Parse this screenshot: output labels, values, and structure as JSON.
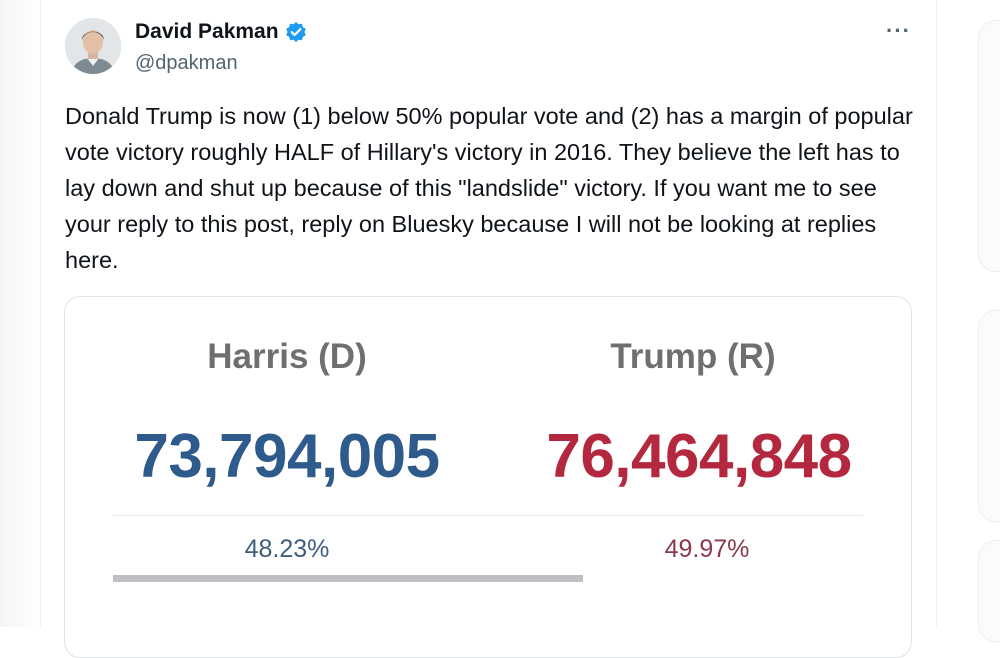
{
  "author": {
    "display_name": "David Pakman",
    "handle": "@dpakman",
    "verified": true,
    "avatar_icon": "profile-photo"
  },
  "menu": {
    "more_label": "···"
  },
  "post": {
    "text": "Donald Trump is now (1) below 50% popular vote and (2) has a margin of popular vote victory roughly HALF of Hillary's victory in 2016. They believe the left has to lay down and shut up because of this \"landslide\" victory. If you want me to see your reply to this post, reply on Bluesky because I will not be looking at replies here."
  },
  "results": {
    "harris": {
      "label": "Harris (D)",
      "votes": "73,794,005",
      "percent": "48.23%",
      "color": "#2e5a8c"
    },
    "trump": {
      "label": "Trump (R)",
      "votes": "76,464,848",
      "percent": "49.97%",
      "color": "#b3283e"
    },
    "label_color": "#6f6f6f"
  }
}
